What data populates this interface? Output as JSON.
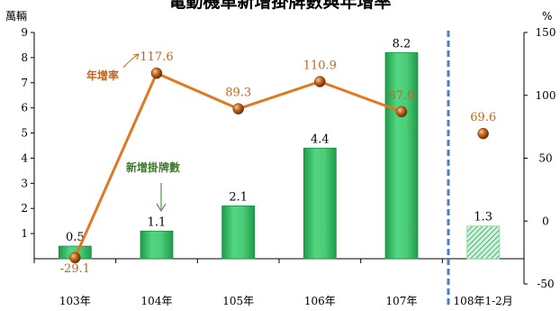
{
  "chart_data": {
    "type": "bar",
    "title": "電動機車新增掛牌數與年增率",
    "y_left_unit": "萬輛",
    "y_right_unit": "%",
    "categories": [
      "103年",
      "104年",
      "105年",
      "106年",
      "107年",
      "108年1-2月"
    ],
    "y_left_ticks": [
      1,
      2,
      3,
      4,
      5,
      6,
      7,
      8,
      9
    ],
    "y_right_ticks": [
      150,
      100,
      50,
      0,
      -50
    ],
    "ylim_left": [
      0,
      9
    ],
    "ylim_right": [
      -50,
      150
    ],
    "series": [
      {
        "name": "新增掛牌數",
        "type": "bar",
        "axis": "left",
        "values": [
          0.5,
          1.1,
          2.1,
          4.4,
          8.2,
          1.3
        ],
        "labels": [
          "0.5",
          "1.1",
          "2.1",
          "4.4",
          "8.2",
          "1.3"
        ],
        "color": "#3cc06a",
        "last_hatched": true
      },
      {
        "name": "年增率",
        "type": "line",
        "axis": "right",
        "values": [
          -29.1,
          117.6,
          89.3,
          110.9,
          87.0,
          69.6
        ],
        "labels": [
          "-29.1",
          "117.6",
          "89.3",
          "110.9",
          "87.0",
          "69.6"
        ],
        "color": "#e07820",
        "last_point_detached": true
      }
    ],
    "grid": false,
    "divider_before_last": true
  },
  "colors": {
    "bar": "#3cc06a",
    "line": "#e07820",
    "label": "#c0661d",
    "divider": "#4a7fc0",
    "annot_bar": "#3c7a2a"
  }
}
